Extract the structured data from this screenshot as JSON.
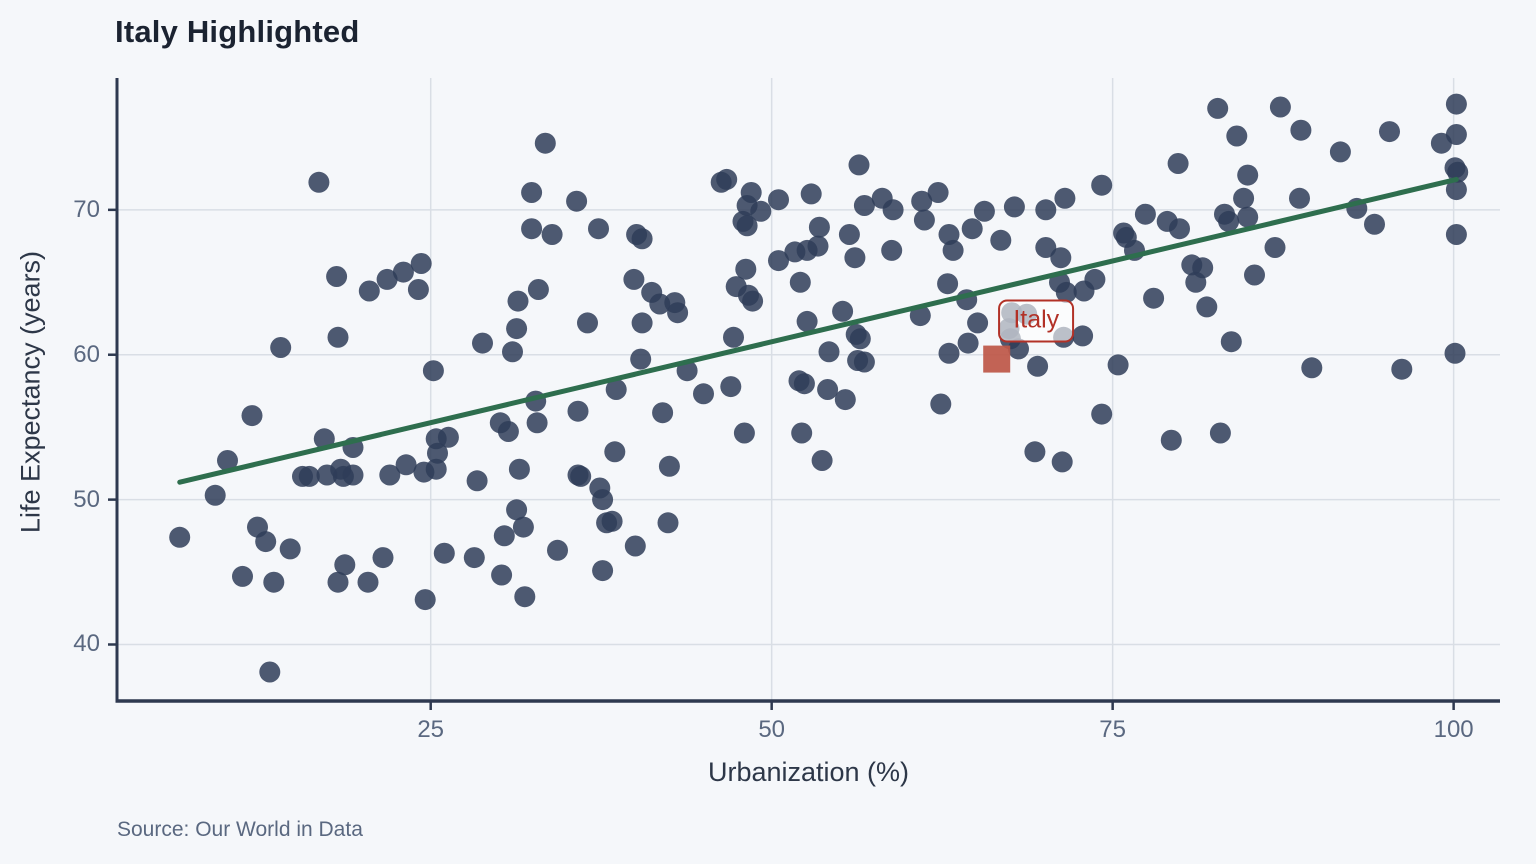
{
  "title": "Italy Highlighted",
  "source": "Source: Our World in Data",
  "chart_data": {
    "type": "scatter",
    "title": "Italy Highlighted",
    "xlabel": "Urbanization (%)",
    "ylabel": "Life Expectancy (years)",
    "x_ticks": [
      25,
      50,
      75,
      100
    ],
    "y_ticks": [
      40,
      50,
      60,
      70
    ],
    "xlim": [
      2,
      103.4
    ],
    "ylim": [
      36.1,
      79.1
    ],
    "grid": true,
    "legend": "none",
    "colors": {
      "point": "#2f3d58",
      "point_opacity": 0.85,
      "trend": "#2e6e4e",
      "highlight": "#bd5748",
      "highlight_label": "#b23127",
      "axis": "#2e3950",
      "grid_line": "#d9dee5",
      "tick_label": "#5a6880",
      "title": "#1b2331",
      "background": "#f5f7fa"
    },
    "trend": {
      "x1": 6.6,
      "y1": 51.2,
      "x2": 100.2,
      "y2": 72.1
    },
    "highlight": {
      "label": "Italy",
      "x": 66.5,
      "y": 59.7,
      "label_x": 69.4,
      "label_y": 62.3
    },
    "points": [
      [
        16.8,
        71.9
      ],
      [
        33.4,
        74.6
      ],
      [
        32.4,
        71.2
      ],
      [
        35.7,
        70.6
      ],
      [
        32.4,
        68.7
      ],
      [
        33.9,
        68.3
      ],
      [
        18.1,
        65.4
      ],
      [
        20.5,
        64.4
      ],
      [
        21.8,
        65.2
      ],
      [
        23.0,
        65.7
      ],
      [
        24.3,
        66.3
      ],
      [
        24.1,
        64.5
      ],
      [
        32.9,
        64.5
      ],
      [
        31.4,
        63.7
      ],
      [
        31.3,
        61.8
      ],
      [
        28.8,
        60.8
      ],
      [
        31.0,
        60.2
      ],
      [
        18.2,
        61.2
      ],
      [
        14.0,
        60.5
      ],
      [
        25.2,
        58.9
      ],
      [
        56.4,
        73.1
      ],
      [
        46.3,
        71.9
      ],
      [
        46.7,
        72.1
      ],
      [
        48.5,
        71.2
      ],
      [
        50.5,
        70.7
      ],
      [
        52.9,
        71.1
      ],
      [
        48.2,
        70.3
      ],
      [
        49.2,
        69.9
      ],
      [
        56.8,
        70.3
      ],
      [
        58.1,
        70.8
      ],
      [
        58.9,
        70.0
      ],
      [
        61.0,
        70.6
      ],
      [
        61.2,
        69.3
      ],
      [
        62.2,
        71.2
      ],
      [
        65.6,
        69.9
      ],
      [
        67.8,
        70.2
      ],
      [
        70.1,
        70.0
      ],
      [
        37.3,
        68.7
      ],
      [
        40.1,
        68.3
      ],
      [
        40.5,
        68.0
      ],
      [
        47.9,
        69.2
      ],
      [
        48.2,
        68.9
      ],
      [
        53.5,
        68.8
      ],
      [
        55.7,
        68.3
      ],
      [
        51.7,
        67.1
      ],
      [
        52.6,
        67.2
      ],
      [
        53.4,
        67.5
      ],
      [
        56.1,
        66.7
      ],
      [
        58.8,
        67.2
      ],
      [
        63.0,
        68.3
      ],
      [
        63.3,
        67.2
      ],
      [
        64.7,
        68.7
      ],
      [
        66.8,
        67.9
      ],
      [
        70.1,
        67.4
      ],
      [
        50.5,
        66.5
      ],
      [
        48.1,
        65.9
      ],
      [
        39.9,
        65.2
      ],
      [
        41.2,
        64.3
      ],
      [
        41.8,
        63.5
      ],
      [
        42.9,
        63.6
      ],
      [
        43.1,
        62.9
      ],
      [
        47.4,
        64.7
      ],
      [
        48.3,
        64.1
      ],
      [
        48.6,
        63.7
      ],
      [
        52.1,
        65.0
      ],
      [
        62.9,
        64.9
      ],
      [
        64.3,
        63.8
      ],
      [
        36.5,
        62.2
      ],
      [
        40.5,
        62.2
      ],
      [
        52.6,
        62.3
      ],
      [
        55.2,
        63.0
      ],
      [
        60.9,
        62.7
      ],
      [
        65.1,
        62.2
      ],
      [
        47.2,
        61.2
      ],
      [
        56.2,
        61.4
      ],
      [
        56.5,
        61.1
      ],
      [
        54.2,
        60.2
      ],
      [
        64.4,
        60.8
      ],
      [
        63.0,
        60.1
      ],
      [
        56.3,
        59.6
      ],
      [
        56.8,
        59.5
      ],
      [
        40.4,
        59.7
      ],
      [
        43.8,
        58.9
      ],
      [
        68.1,
        60.4
      ],
      [
        69.5,
        59.2
      ],
      [
        52.0,
        58.2
      ],
      [
        52.4,
        58.0
      ],
      [
        38.6,
        57.6
      ],
      [
        45.0,
        57.3
      ],
      [
        47.0,
        57.8
      ],
      [
        54.1,
        57.6
      ],
      [
        67.6,
        62.9
      ],
      [
        68.7,
        62.8
      ],
      [
        67.4,
        61.8
      ],
      [
        67.5,
        61.1
      ],
      [
        71.4,
        61.2
      ],
      [
        82.7,
        77.0
      ],
      [
        87.3,
        77.1
      ],
      [
        88.8,
        75.5
      ],
      [
        84.1,
        75.1
      ],
      [
        95.3,
        75.4
      ],
      [
        100.2,
        77.3
      ],
      [
        100.2,
        75.2
      ],
      [
        99.1,
        74.6
      ],
      [
        91.7,
        74.0
      ],
      [
        79.8,
        73.2
      ],
      [
        100.1,
        72.9
      ],
      [
        100.3,
        72.6
      ],
      [
        84.9,
        72.4
      ],
      [
        100.2,
        71.4
      ],
      [
        74.2,
        71.7
      ],
      [
        71.5,
        70.8
      ],
      [
        84.6,
        70.8
      ],
      [
        88.7,
        70.8
      ],
      [
        83.2,
        69.7
      ],
      [
        83.5,
        69.2
      ],
      [
        84.9,
        69.5
      ],
      [
        77.4,
        69.7
      ],
      [
        79.0,
        69.2
      ],
      [
        79.9,
        68.7
      ],
      [
        75.8,
        68.4
      ],
      [
        76.0,
        68.1
      ],
      [
        92.9,
        70.1
      ],
      [
        94.2,
        69.0
      ],
      [
        76.6,
        67.2
      ],
      [
        86.9,
        67.4
      ],
      [
        100.2,
        68.3
      ],
      [
        71.2,
        66.7
      ],
      [
        80.8,
        66.2
      ],
      [
        81.6,
        66.0
      ],
      [
        81.1,
        65.0
      ],
      [
        85.4,
        65.5
      ],
      [
        71.1,
        65.0
      ],
      [
        71.6,
        64.3
      ],
      [
        73.7,
        65.2
      ],
      [
        72.9,
        64.4
      ],
      [
        78.0,
        63.9
      ],
      [
        81.9,
        63.3
      ],
      [
        72.8,
        61.3
      ],
      [
        83.7,
        60.9
      ],
      [
        100.1,
        60.1
      ],
      [
        75.4,
        59.3
      ],
      [
        89.6,
        59.1
      ],
      [
        96.2,
        59.0
      ],
      [
        11.9,
        55.8
      ],
      [
        10.1,
        52.7
      ],
      [
        9.2,
        50.3
      ],
      [
        6.6,
        47.4
      ],
      [
        17.2,
        54.2
      ],
      [
        19.3,
        53.6
      ],
      [
        15.6,
        51.6
      ],
      [
        16.1,
        51.6
      ],
      [
        17.4,
        51.7
      ],
      [
        18.4,
        52.1
      ],
      [
        18.6,
        51.6
      ],
      [
        19.3,
        51.7
      ],
      [
        22.0,
        51.7
      ],
      [
        23.2,
        52.4
      ],
      [
        24.5,
        51.9
      ],
      [
        25.4,
        52.1
      ],
      [
        25.4,
        54.2
      ],
      [
        26.3,
        54.3
      ],
      [
        25.5,
        53.2
      ],
      [
        28.4,
        51.3
      ],
      [
        30.1,
        55.3
      ],
      [
        30.7,
        54.7
      ],
      [
        32.7,
        56.8
      ],
      [
        32.8,
        55.3
      ],
      [
        31.5,
        52.1
      ],
      [
        35.8,
        56.1
      ],
      [
        35.8,
        51.7
      ],
      [
        12.3,
        48.1
      ],
      [
        12.9,
        47.1
      ],
      [
        14.7,
        46.6
      ],
      [
        11.2,
        44.7
      ],
      [
        13.5,
        44.3
      ],
      [
        18.7,
        45.5
      ],
      [
        18.2,
        44.3
      ],
      [
        20.4,
        44.3
      ],
      [
        21.5,
        46.0
      ],
      [
        24.6,
        43.1
      ],
      [
        26.0,
        46.3
      ],
      [
        28.2,
        46.0
      ],
      [
        30.2,
        44.8
      ],
      [
        30.4,
        47.5
      ],
      [
        31.3,
        49.3
      ],
      [
        31.8,
        48.1
      ],
      [
        31.9,
        43.3
      ],
      [
        34.3,
        46.5
      ],
      [
        13.2,
        38.1
      ],
      [
        42.0,
        56.0
      ],
      [
        48.0,
        54.6
      ],
      [
        38.5,
        53.3
      ],
      [
        42.5,
        52.3
      ],
      [
        36.0,
        51.6
      ],
      [
        37.4,
        50.8
      ],
      [
        37.6,
        50.0
      ],
      [
        37.9,
        48.4
      ],
      [
        38.3,
        48.5
      ],
      [
        42.4,
        48.4
      ],
      [
        40.0,
        46.8
      ],
      [
        37.6,
        45.1
      ],
      [
        55.4,
        56.9
      ],
      [
        62.4,
        56.6
      ],
      [
        52.2,
        54.6
      ],
      [
        53.7,
        52.7
      ],
      [
        69.3,
        53.3
      ],
      [
        74.2,
        55.9
      ],
      [
        79.3,
        54.1
      ],
      [
        82.9,
        54.6
      ],
      [
        71.3,
        52.6
      ]
    ]
  }
}
